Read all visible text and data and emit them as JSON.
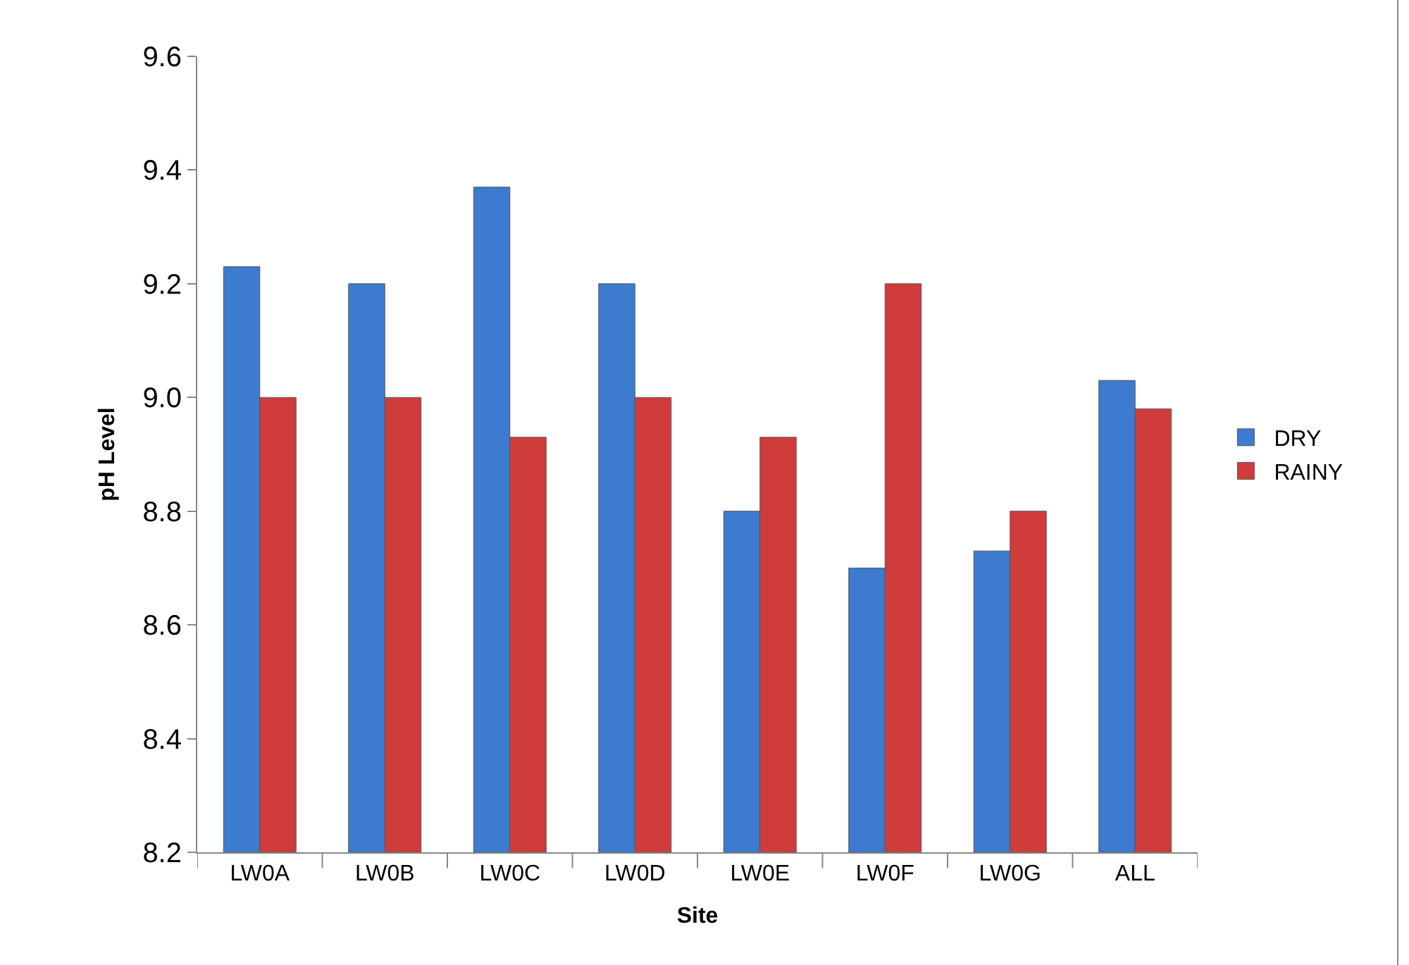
{
  "chart_data": {
    "type": "bar",
    "xlabel": "Site",
    "ylabel": "pH Level",
    "categories": [
      "LW0A",
      "LW0B",
      "LW0C",
      "LW0D",
      "LW0E",
      "LW0F",
      "LW0G",
      "ALL"
    ],
    "series": [
      {
        "name": "DRY",
        "color": "#3c7bd0",
        "values": [
          9.23,
          9.2,
          9.37,
          9.2,
          8.8,
          8.7,
          8.73,
          9.03
        ]
      },
      {
        "name": "RAINY",
        "color": "#d03c3c",
        "values": [
          9.0,
          9.0,
          8.93,
          9.0,
          8.93,
          9.2,
          8.8,
          8.98
        ]
      }
    ],
    "ylim": [
      8.2,
      9.6
    ],
    "yticks": [
      {
        "value": 8.2,
        "label": "8.2"
      },
      {
        "value": 8.4,
        "label": "8.4"
      },
      {
        "value": 8.6,
        "label": "8.6"
      },
      {
        "value": 8.8,
        "label": "8.8"
      },
      {
        "value": 9.0,
        "label": "9.0"
      },
      {
        "value": 9.2,
        "label": "9.2"
      },
      {
        "value": 9.4,
        "label": "9.4"
      },
      {
        "value": 9.6,
        "label": "9.6"
      }
    ],
    "grid": false,
    "legend": "right"
  }
}
